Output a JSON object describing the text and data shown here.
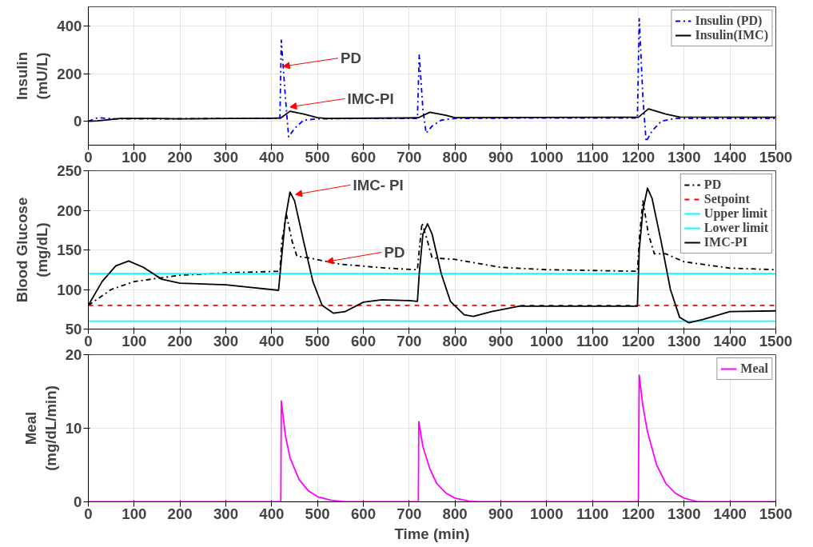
{
  "chart_data": [
    {
      "type": "line",
      "ylabel": "Insulin\n(mU/L)",
      "xlim": [
        0,
        1500
      ],
      "xticks": [
        0,
        100,
        200,
        300,
        400,
        500,
        600,
        700,
        800,
        900,
        1000,
        1100,
        1200,
        1300,
        1400,
        1500
      ],
      "ylim": [
        -100,
        480
      ],
      "yticks": [
        0,
        200,
        400
      ],
      "grid": true,
      "legend": "top right",
      "annotations": [
        {
          "text": "PD",
          "x": 425,
          "y": 230
        },
        {
          "text": "IMC-PI",
          "x": 440,
          "y": 60
        }
      ],
      "series": [
        {
          "name": "Insulin (PD)",
          "color": "#0000ff",
          "line_style": "dashdot",
          "x": [
            0,
            20,
            60,
            150,
            300,
            418,
            421,
            430,
            437,
            450,
            470,
            500,
            600,
            718,
            722,
            730,
            737,
            750,
            770,
            800,
            1000,
            1198,
            1202,
            1210,
            1217,
            1230,
            1250,
            1280,
            1500
          ],
          "values": [
            0,
            15,
            10,
            10,
            12,
            12,
            340,
            100,
            -65,
            -30,
            5,
            10,
            12,
            12,
            280,
            50,
            -50,
            -20,
            5,
            12,
            14,
            14,
            430,
            100,
            -85,
            -40,
            0,
            12,
            12
          ]
        },
        {
          "name": "Insulin(IMC)",
          "color": "#000000",
          "line_style": "solid",
          "x": [
            0,
            20,
            70,
            150,
            200,
            400,
            420,
            440,
            470,
            500,
            520,
            700,
            720,
            745,
            780,
            800,
            1200,
            1222,
            1260,
            1290,
            1500
          ],
          "values": [
            0,
            2,
            12,
            12,
            10,
            13,
            14,
            42,
            30,
            15,
            12,
            14,
            15,
            38,
            25,
            15,
            17,
            52,
            30,
            18,
            17
          ]
        }
      ]
    },
    {
      "type": "line",
      "ylabel": "Blood Glucose\n(mg/dL)",
      "xlim": [
        0,
        1500
      ],
      "xticks": [
        0,
        100,
        200,
        300,
        400,
        500,
        600,
        700,
        800,
        900,
        1000,
        1100,
        1200,
        1300,
        1400,
        1500
      ],
      "ylim": [
        50,
        250
      ],
      "yticks": [
        50,
        100,
        150,
        200,
        250
      ],
      "grid": true,
      "legend": "top right",
      "annotations": [
        {
          "text": "IMC- PI",
          "x": 452,
          "y": 220
        },
        {
          "text": "PD",
          "x": 520,
          "y": 135
        }
      ],
      "series": [
        {
          "name": "PD",
          "color": "#000000",
          "line_style": "dashdot",
          "x": [
            0,
            50,
            100,
            200,
            300,
            418,
            422,
            432,
            445,
            455,
            480,
            550,
            650,
            718,
            722,
            728,
            738,
            750,
            800,
            900,
            1000,
            1198,
            1203,
            1210,
            1222,
            1235,
            1260,
            1300,
            1400,
            1500
          ],
          "values": [
            80,
            100,
            110,
            118,
            121,
            123,
            160,
            195,
            160,
            142,
            140,
            132,
            127,
            125,
            150,
            184,
            165,
            140,
            138,
            128,
            125,
            123,
            170,
            212,
            170,
            145,
            145,
            135,
            127,
            125
          ]
        },
        {
          "name": "Setpoint",
          "color": "#ff0000",
          "line_style": "dashed",
          "x": [
            0,
            1500
          ],
          "values": [
            80,
            80
          ]
        },
        {
          "name": "Upper limit",
          "color": "#00ffff",
          "line_style": "solid",
          "x": [
            0,
            1500
          ],
          "values": [
            120,
            120
          ]
        },
        {
          "name": "Lower limit",
          "color": "#00ffff",
          "line_style": "solid",
          "x": [
            0,
            1500
          ],
          "values": [
            60,
            60
          ]
        },
        {
          "name": "IMC-PI",
          "color": "#000000",
          "line_style": "solid",
          "x": [
            0,
            30,
            60,
            88,
            120,
            160,
            200,
            300,
            350,
            415,
            420,
            430,
            440,
            450,
            470,
            490,
            510,
            535,
            560,
            600,
            640,
            700,
            718,
            722,
            730,
            740,
            750,
            770,
            790,
            820,
            840,
            880,
            940,
            1000,
            1198,
            1202,
            1210,
            1220,
            1230,
            1250,
            1270,
            1290,
            1310,
            1340,
            1400,
            1500
          ],
          "values": [
            80,
            110,
            130,
            136,
            128,
            113,
            108,
            106,
            103,
            99,
            130,
            190,
            223,
            212,
            160,
            110,
            80,
            70,
            72,
            84,
            87,
            86,
            85,
            120,
            170,
            183,
            170,
            120,
            85,
            68,
            66,
            72,
            79,
            79,
            79,
            150,
            200,
            228,
            215,
            160,
            100,
            65,
            58,
            62,
            72,
            73
          ]
        }
      ]
    },
    {
      "type": "line",
      "ylabel": "Meal\n(mg/dL/min)",
      "xlabel": "Time (min)",
      "xlim": [
        0,
        1500
      ],
      "xticks": [
        0,
        100,
        200,
        300,
        400,
        500,
        600,
        700,
        800,
        900,
        1000,
        1100,
        1200,
        1300,
        1400,
        1500
      ],
      "ylim": [
        0,
        20
      ],
      "yticks": [
        0,
        10,
        20
      ],
      "grid": true,
      "legend": "top right",
      "series": [
        {
          "name": "Meal",
          "color": "#ff00ff",
          "line_style": "solid",
          "x": [
            0,
            420,
            421,
            430,
            440,
            460,
            480,
            500,
            530,
            560,
            720,
            721,
            730,
            745,
            760,
            780,
            800,
            830,
            850,
            1200,
            1202,
            1210,
            1220,
            1240,
            1260,
            1280,
            1300,
            1330,
            1500
          ],
          "values": [
            0,
            0,
            13.7,
            9,
            6,
            3,
            1.5,
            0.7,
            0.2,
            0,
            0,
            10.9,
            7.5,
            4.5,
            2.5,
            1.2,
            0.5,
            0.1,
            0,
            0,
            17.2,
            13,
            9.5,
            5,
            2.5,
            1.2,
            0.5,
            0,
            0
          ]
        }
      ]
    }
  ]
}
